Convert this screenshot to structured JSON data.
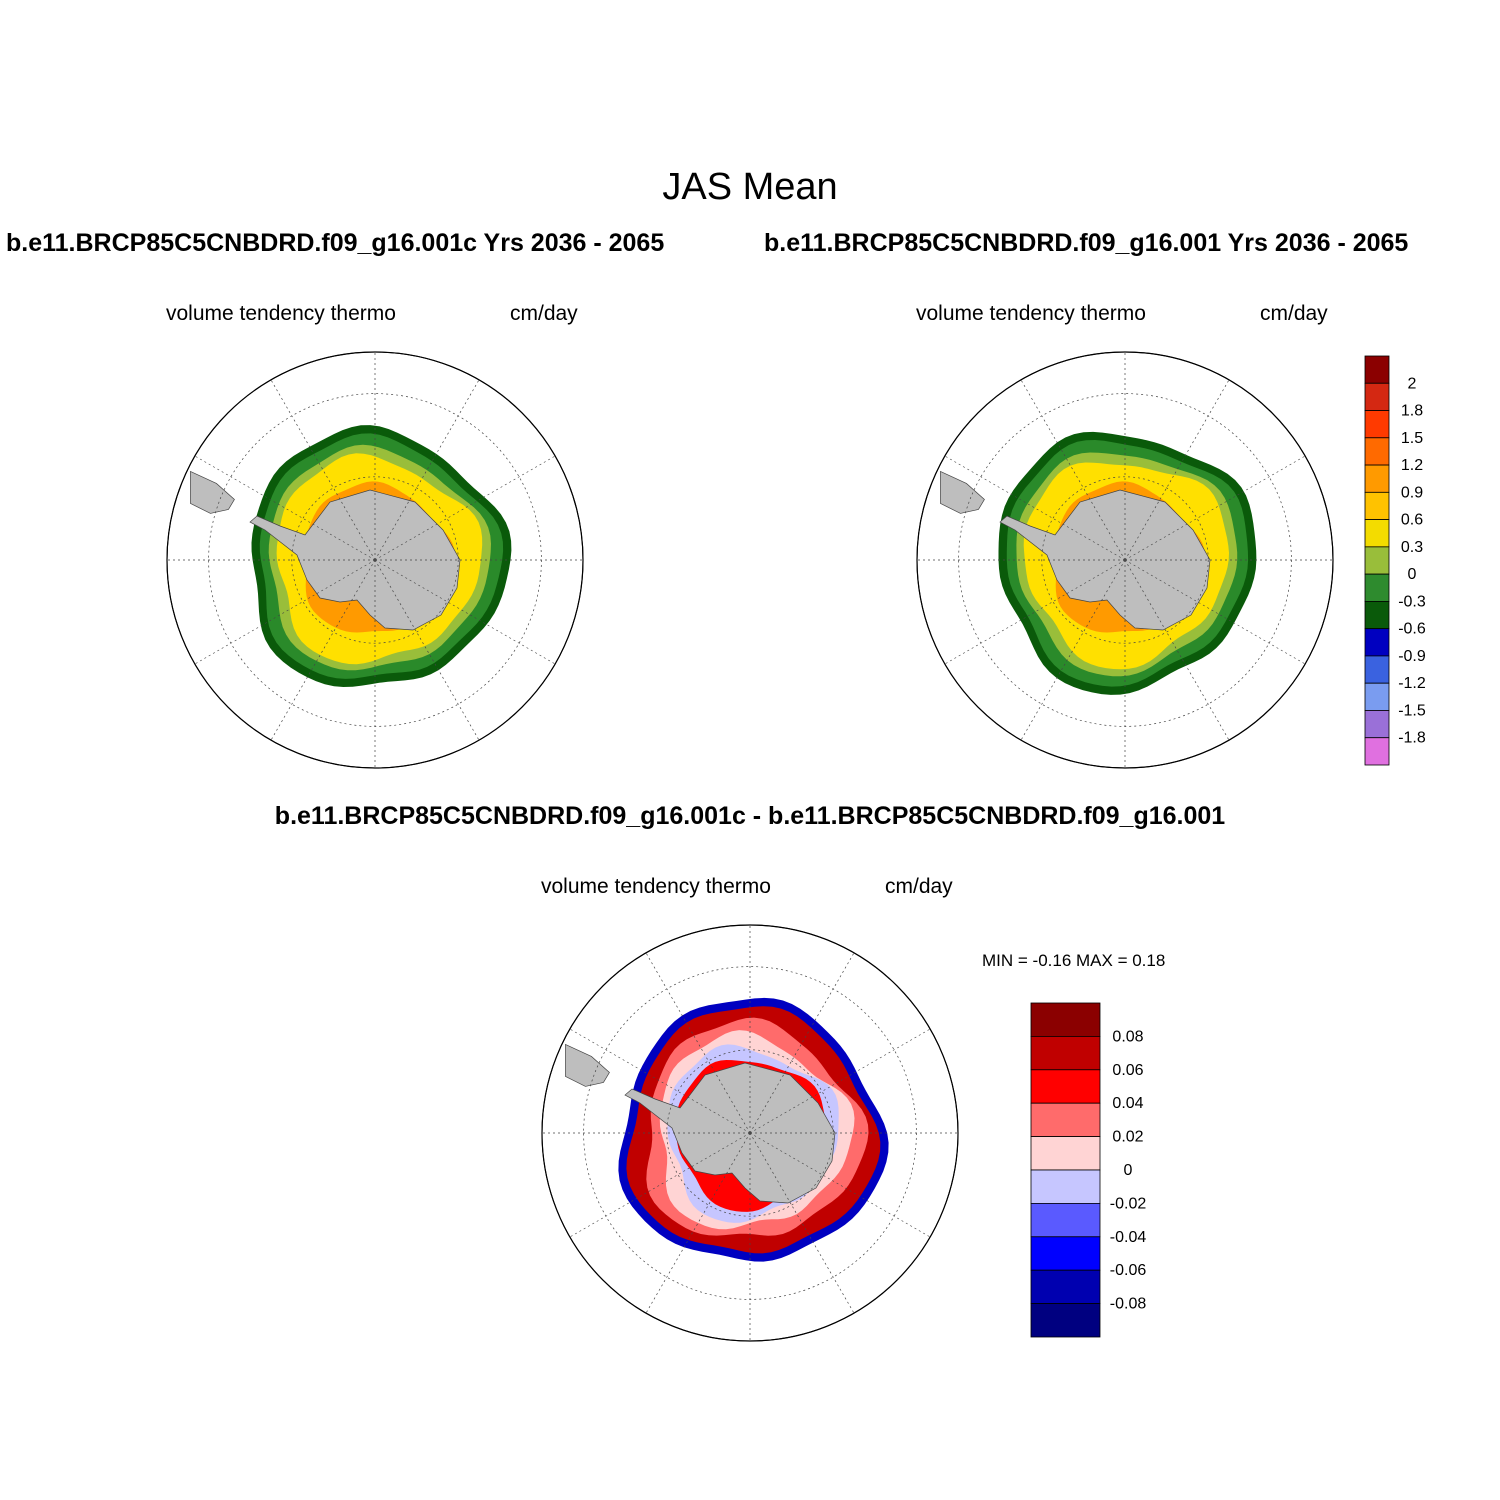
{
  "figure": {
    "title": "JAS Mean",
    "case1_title": "b.e11.BRCP85C5CNBDRD.f09_g16.001c  Yrs 2036 - 2065",
    "case2_title": "b.e11.BRCP85C5CNBDRD.f09_g16.001  Yrs 2036 - 2065",
    "diff_title": "b.e11.BRCP85C5CNBDRD.f09_g16.001c - b.e11.BRCP85C5CNBDRD.f09_g16.001"
  },
  "panels": [
    {
      "variable": "volume tendency thermo",
      "units": "cm/day"
    },
    {
      "variable": "volume tendency thermo",
      "units": "cm/day"
    },
    {
      "variable": "volume tendency thermo",
      "units": "cm/day",
      "min_max": "MIN =  -0.16 MAX =   0.18"
    }
  ],
  "colorbar_main": {
    "labels": [
      "2",
      "1.8",
      "1.5",
      "1.2",
      "0.9",
      "0.6",
      "0.3",
      "0",
      "-0.3",
      "-0.6",
      "-0.9",
      "-1.2",
      "-1.5",
      "-1.8"
    ],
    "colors": [
      "#8b0000",
      "#d42812",
      "#ff3a00",
      "#ff6a00",
      "#ff9a00",
      "#ffc200",
      "#f3dc00",
      "#99be3a",
      "#2e8b2e",
      "#0a5a0a",
      "#0000c0",
      "#3a62e0",
      "#7a9cf0",
      "#9a70d8",
      "#e070e0"
    ]
  },
  "colorbar_diff": {
    "labels": [
      "0.08",
      "0.06",
      "0.04",
      "0.02",
      "0",
      "-0.02",
      "-0.04",
      "-0.06",
      "-0.08"
    ],
    "colors": [
      "#8b0000",
      "#c00000",
      "#ff0000",
      "#ff6b6b",
      "#ffd4d4",
      "#c6c6ff",
      "#5a5aff",
      "#0000ff",
      "#0000b0",
      "#000080"
    ]
  },
  "map_colors": {
    "land": "#bebebe",
    "yellow": "#ffe000",
    "green": "#2a8a2a",
    "dark_green": "#0a5a0a",
    "light_green": "#99be3a",
    "orange": "#ff9a00"
  }
}
